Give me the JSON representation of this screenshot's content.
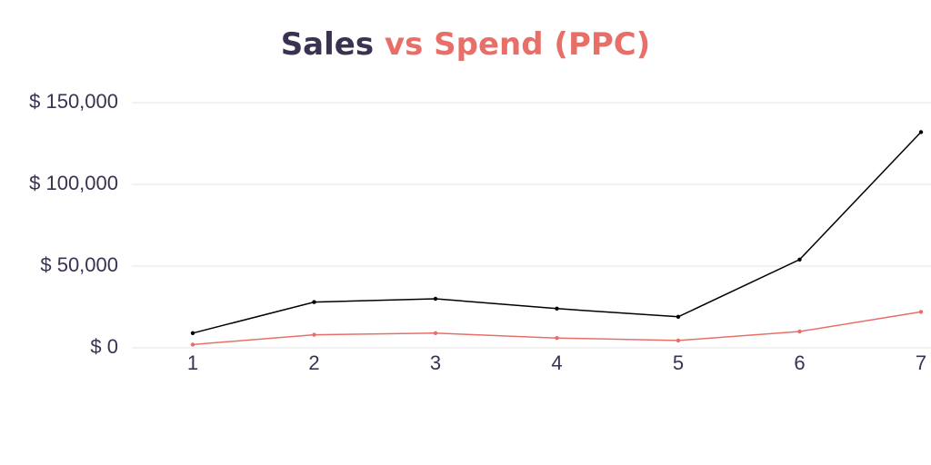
{
  "chart_data": {
    "type": "line",
    "title_parts": [
      {
        "text": "Sales",
        "color": "#3b3151"
      },
      {
        "text": "vs Spend (PPC)",
        "color": "#e86f68"
      }
    ],
    "x": [
      1,
      2,
      3,
      4,
      5,
      6,
      7
    ],
    "xlim": [
      1,
      7
    ],
    "xticks": [
      1,
      2,
      3,
      4,
      5,
      6,
      7
    ],
    "ylim": [
      0,
      150000
    ],
    "yticks": [
      {
        "value": 0,
        "label": "$ 0"
      },
      {
        "value": 50000,
        "label": "$ 50,000"
      },
      {
        "value": 100000,
        "label": "$ 100,000"
      },
      {
        "value": 150000,
        "label": "$ 150,000"
      }
    ],
    "grid": true,
    "series": [
      {
        "color": "#000000",
        "values": [
          9000,
          28000,
          30000,
          24000,
          19000,
          54000,
          132000
        ]
      },
      {
        "color": "#e86f68",
        "values": [
          2000,
          8000,
          9000,
          6000,
          4500,
          10000,
          22000
        ]
      }
    ]
  }
}
